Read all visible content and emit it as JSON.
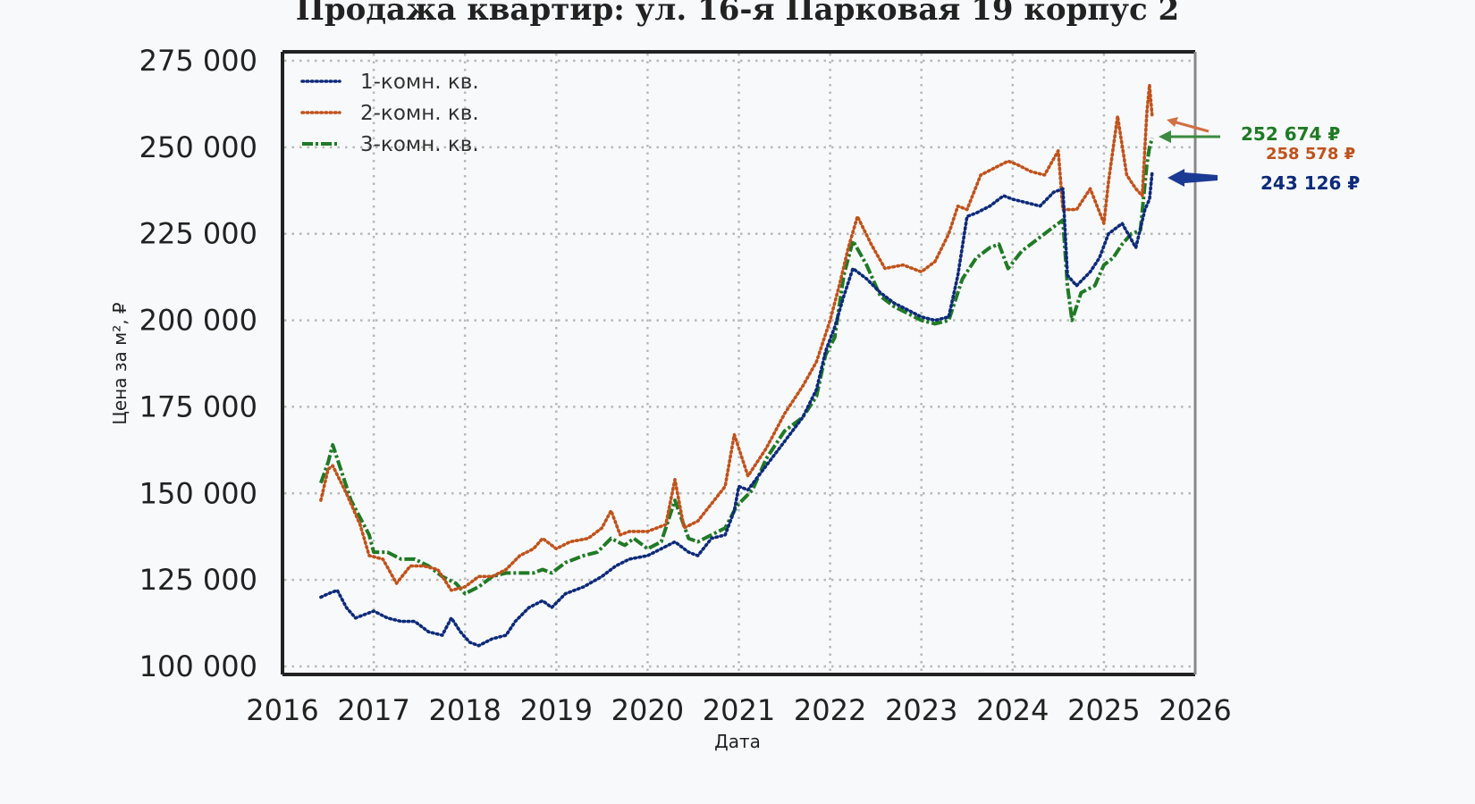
{
  "chart_data": {
    "type": "line",
    "title": "Продажа квартир: ул. 16-я Парковая 19 корпус 2",
    "xlabel": "Дата",
    "ylabel": "Цена за м², ₽",
    "xlim": [
      2016,
      2026
    ],
    "ylim": [
      97000,
      278000
    ],
    "x_ticks": [
      "2016",
      "2017",
      "2018",
      "2019",
      "2020",
      "2021",
      "2022",
      "2023",
      "2024",
      "2025",
      "2026"
    ],
    "y_ticks": [
      "100 000",
      "125 000",
      "150 000",
      "175 000",
      "200 000",
      "225 000",
      "250 000",
      "275 000"
    ],
    "y_tick_values": [
      100000,
      125000,
      150000,
      175000,
      200000,
      225000,
      250000,
      275000
    ],
    "grid": true,
    "legend_position": "upper left",
    "series": [
      {
        "name": "1-комн. кв.",
        "color": "#0d2a7a",
        "style": "dotted",
        "x": [
          2016.42,
          2016.5,
          2016.6,
          2016.7,
          2016.8,
          2016.9,
          2017.0,
          2017.15,
          2017.3,
          2017.45,
          2017.6,
          2017.75,
          2017.85,
          2017.95,
          2018.05,
          2018.15,
          2018.3,
          2018.45,
          2018.55,
          2018.7,
          2018.85,
          2018.95,
          2019.1,
          2019.3,
          2019.5,
          2019.65,
          2019.8,
          2020.0,
          2020.15,
          2020.3,
          2020.45,
          2020.55,
          2020.7,
          2020.85,
          2020.95,
          2021.0,
          2021.1,
          2021.3,
          2021.5,
          2021.7,
          2021.85,
          2021.95,
          2022.05,
          2022.15,
          2022.25,
          2022.4,
          2022.55,
          2022.7,
          2022.85,
          2023.0,
          2023.15,
          2023.3,
          2023.4,
          2023.5,
          2023.6,
          2023.75,
          2023.9,
          2024.0,
          2024.15,
          2024.3,
          2024.45,
          2024.55,
          2024.6,
          2024.7,
          2024.85,
          2024.95,
          2025.05,
          2025.2,
          2025.35,
          2025.45,
          2025.5,
          2025.53
        ],
        "values": [
          120000,
          121000,
          122000,
          117000,
          114000,
          115000,
          116000,
          114000,
          113000,
          113000,
          110000,
          109000,
          114000,
          110000,
          107000,
          106000,
          108000,
          109000,
          113000,
          117000,
          119000,
          117000,
          121000,
          123000,
          126000,
          129000,
          131000,
          132000,
          134000,
          136000,
          133000,
          132000,
          137000,
          138000,
          145000,
          152000,
          151000,
          158000,
          165000,
          172000,
          180000,
          191000,
          198000,
          207000,
          215000,
          212000,
          208000,
          205000,
          203000,
          201000,
          200000,
          201000,
          213000,
          230000,
          231000,
          233000,
          236000,
          235000,
          234000,
          233000,
          237000,
          238000,
          213000,
          210000,
          214000,
          218000,
          225000,
          228000,
          221000,
          232000,
          235000,
          243126
        ]
      },
      {
        "name": "2-комн. кв.",
        "color": "#c0521c",
        "style": "dotted",
        "x": [
          2016.42,
          2016.5,
          2016.55,
          2016.7,
          2016.85,
          2016.95,
          2017.1,
          2017.25,
          2017.4,
          2017.55,
          2017.7,
          2017.85,
          2018.0,
          2018.15,
          2018.3,
          2018.45,
          2018.6,
          2018.75,
          2018.85,
          2019.0,
          2019.15,
          2019.35,
          2019.5,
          2019.6,
          2019.7,
          2019.8,
          2020.0,
          2020.2,
          2020.3,
          2020.4,
          2020.55,
          2020.7,
          2020.85,
          2020.95,
          2021.1,
          2021.3,
          2021.5,
          2021.7,
          2021.85,
          2022.0,
          2022.1,
          2022.2,
          2022.3,
          2022.45,
          2022.6,
          2022.8,
          2023.0,
          2023.15,
          2023.3,
          2023.4,
          2023.5,
          2023.65,
          2023.8,
          2023.95,
          2024.05,
          2024.2,
          2024.35,
          2024.5,
          2024.55,
          2024.7,
          2024.85,
          2025.0,
          2025.05,
          2025.15,
          2025.25,
          2025.35,
          2025.42,
          2025.47,
          2025.5,
          2025.53
        ],
        "values": [
          148000,
          157000,
          158000,
          150000,
          141000,
          132000,
          131000,
          124000,
          129000,
          129000,
          128000,
          122000,
          123000,
          126000,
          126000,
          128000,
          132000,
          134000,
          137000,
          134000,
          136000,
          137000,
          140000,
          145000,
          138000,
          139000,
          139000,
          141000,
          154000,
          140000,
          142000,
          147000,
          152000,
          167000,
          155000,
          163000,
          173000,
          181000,
          188000,
          200000,
          210000,
          221000,
          230000,
          222000,
          215000,
          216000,
          214000,
          217000,
          225000,
          233000,
          232000,
          242000,
          244000,
          246000,
          245000,
          243000,
          242000,
          249000,
          232000,
          232000,
          238000,
          228000,
          240000,
          259000,
          242000,
          238000,
          236000,
          260000,
          268000,
          258578
        ]
      },
      {
        "name": "3-комн. кв.",
        "color": "#1f7a25",
        "style": "dashdot",
        "x": [
          2016.42,
          2016.5,
          2016.55,
          2016.65,
          2016.75,
          2016.85,
          2016.95,
          2017.0,
          2017.15,
          2017.3,
          2017.45,
          2017.6,
          2017.75,
          2017.9,
          2018.0,
          2018.15,
          2018.3,
          2018.45,
          2018.6,
          2018.75,
          2018.85,
          2018.95,
          2019.1,
          2019.3,
          2019.45,
          2019.6,
          2019.75,
          2019.85,
          2020.0,
          2020.15,
          2020.3,
          2020.45,
          2020.55,
          2020.7,
          2020.85,
          2020.95,
          2021.0,
          2021.15,
          2021.3,
          2021.5,
          2021.7,
          2021.85,
          2021.95,
          2022.05,
          2022.15,
          2022.25,
          2022.4,
          2022.55,
          2022.7,
          2022.85,
          2023.0,
          2023.15,
          2023.3,
          2023.45,
          2023.6,
          2023.75,
          2023.85,
          2023.95,
          2024.1,
          2024.25,
          2024.4,
          2024.55,
          2024.6,
          2024.65,
          2024.75,
          2024.9,
          2025.0,
          2025.1,
          2025.2,
          2025.3,
          2025.4,
          2025.47,
          2025.5,
          2025.53
        ],
        "values": [
          153000,
          159000,
          164000,
          156000,
          148000,
          143000,
          138000,
          133000,
          133000,
          131000,
          131000,
          129000,
          126000,
          124000,
          121000,
          123000,
          126000,
          127000,
          127000,
          127000,
          128000,
          127000,
          130000,
          132000,
          133000,
          137000,
          135000,
          137000,
          134000,
          136000,
          148000,
          137000,
          136000,
          138000,
          140000,
          145000,
          147000,
          151000,
          160000,
          168000,
          172000,
          178000,
          190000,
          195000,
          213000,
          223000,
          216000,
          207000,
          204000,
          202000,
          200000,
          199000,
          200000,
          212000,
          218000,
          221000,
          222000,
          215000,
          220000,
          223000,
          226000,
          229000,
          210000,
          200000,
          208000,
          210000,
          216000,
          218000,
          222000,
          225000,
          226000,
          245000,
          250000,
          252674
        ]
      }
    ],
    "annotations": [
      {
        "text": "252 674 ₽",
        "series": "3-комн. кв.",
        "color": "#1f7a25",
        "value": 252674
      },
      {
        "text": "258 578 ₽",
        "series": "2-комн. кв.",
        "color": "#c0521c",
        "value": 258578
      },
      {
        "text": "243 126 ₽",
        "series": "1-комн. кв.",
        "color": "#0d2a7a",
        "value": 243126
      }
    ]
  }
}
